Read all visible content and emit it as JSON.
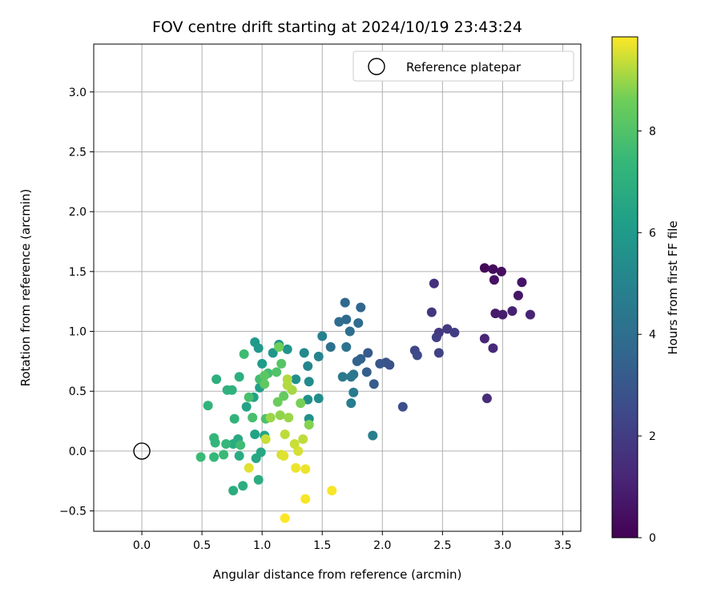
{
  "chart_data": {
    "type": "scatter",
    "title": "FOV centre drift starting at 2024/10/19 23:43:24",
    "xlabel": "Angular distance from reference (arcmin)",
    "ylabel": "Rotation from reference (arcmin)",
    "xlim": [
      -0.4,
      3.65
    ],
    "ylim": [
      -0.67,
      3.4
    ],
    "xticks": [
      "0.0",
      "0.5",
      "1.0",
      "1.5",
      "2.0",
      "2.5",
      "3.0",
      "3.5"
    ],
    "yticks": [
      "−0.5",
      "0.0",
      "0.5",
      "1.0",
      "1.5",
      "2.0",
      "2.5",
      "3.0"
    ],
    "grid": true,
    "legend": {
      "position": "top-right",
      "entries": [
        "Reference platepar"
      ]
    },
    "reference_point": {
      "name": "Reference platepar",
      "x": 0.0,
      "y": 0.0
    },
    "colorbar": {
      "label": "Hours from first FF file",
      "range": [
        0,
        9.85
      ],
      "ticks": [
        "0",
        "2",
        "4",
        "6",
        "8"
      ],
      "colormap": "viridis"
    },
    "points": [
      {
        "x": 2.85,
        "y": 1.53,
        "hours": 0.2
      },
      {
        "x": 2.92,
        "y": 1.52,
        "hours": 0.3
      },
      {
        "x": 2.99,
        "y": 1.5,
        "hours": 0.4
      },
      {
        "x": 2.93,
        "y": 1.43,
        "hours": 0.5
      },
      {
        "x": 3.16,
        "y": 1.41,
        "hours": 0.6
      },
      {
        "x": 3.13,
        "y": 1.3,
        "hours": 0.7
      },
      {
        "x": 2.94,
        "y": 1.15,
        "hours": 0.8
      },
      {
        "x": 3.0,
        "y": 1.14,
        "hours": 0.9
      },
      {
        "x": 3.08,
        "y": 1.17,
        "hours": 1.0
      },
      {
        "x": 3.23,
        "y": 1.14,
        "hours": 1.1
      },
      {
        "x": 2.85,
        "y": 0.94,
        "hours": 1.2
      },
      {
        "x": 2.92,
        "y": 0.86,
        "hours": 1.3
      },
      {
        "x": 2.87,
        "y": 0.44,
        "hours": 1.4
      },
      {
        "x": 2.43,
        "y": 1.4,
        "hours": 1.6
      },
      {
        "x": 2.41,
        "y": 1.16,
        "hours": 1.7
      },
      {
        "x": 2.47,
        "y": 0.99,
        "hours": 1.8
      },
      {
        "x": 2.54,
        "y": 1.02,
        "hours": 1.9
      },
      {
        "x": 2.6,
        "y": 0.99,
        "hours": 2.0
      },
      {
        "x": 2.45,
        "y": 0.95,
        "hours": 2.1
      },
      {
        "x": 2.47,
        "y": 0.82,
        "hours": 2.2
      },
      {
        "x": 2.27,
        "y": 0.84,
        "hours": 2.4
      },
      {
        "x": 2.29,
        "y": 0.8,
        "hours": 2.5
      },
      {
        "x": 2.17,
        "y": 0.37,
        "hours": 2.7
      },
      {
        "x": 2.06,
        "y": 0.72,
        "hours": 2.8
      },
      {
        "x": 2.03,
        "y": 0.74,
        "hours": 2.9
      },
      {
        "x": 1.98,
        "y": 0.73,
        "hours": 3.0
      },
      {
        "x": 1.88,
        "y": 0.82,
        "hours": 3.1
      },
      {
        "x": 1.93,
        "y": 0.56,
        "hours": 3.2
      },
      {
        "x": 1.87,
        "y": 0.66,
        "hours": 3.3
      },
      {
        "x": 1.82,
        "y": 0.77,
        "hours": 3.4
      },
      {
        "x": 1.79,
        "y": 0.75,
        "hours": 3.5
      },
      {
        "x": 1.82,
        "y": 1.2,
        "hours": 3.6
      },
      {
        "x": 1.69,
        "y": 1.24,
        "hours": 3.7
      },
      {
        "x": 1.7,
        "y": 1.1,
        "hours": 3.8
      },
      {
        "x": 1.64,
        "y": 1.08,
        "hours": 3.9
      },
      {
        "x": 1.8,
        "y": 1.07,
        "hours": 3.9
      },
      {
        "x": 1.73,
        "y": 1.0,
        "hours": 4.0
      },
      {
        "x": 1.57,
        "y": 0.87,
        "hours": 4.1
      },
      {
        "x": 1.7,
        "y": 0.87,
        "hours": 4.2
      },
      {
        "x": 1.76,
        "y": 0.64,
        "hours": 4.3
      },
      {
        "x": 1.74,
        "y": 0.62,
        "hours": 4.4
      },
      {
        "x": 1.67,
        "y": 0.62,
        "hours": 4.5
      },
      {
        "x": 1.76,
        "y": 0.49,
        "hours": 4.6
      },
      {
        "x": 1.74,
        "y": 0.4,
        "hours": 4.7
      },
      {
        "x": 1.92,
        "y": 0.13,
        "hours": 4.8
      },
      {
        "x": 1.5,
        "y": 0.96,
        "hours": 4.9
      },
      {
        "x": 1.47,
        "y": 0.79,
        "hours": 5.0
      },
      {
        "x": 1.38,
        "y": 0.71,
        "hours": 5.1
      },
      {
        "x": 1.35,
        "y": 0.82,
        "hours": 5.2
      },
      {
        "x": 1.39,
        "y": 0.58,
        "hours": 5.3
      },
      {
        "x": 1.47,
        "y": 0.44,
        "hours": 5.4
      },
      {
        "x": 1.38,
        "y": 0.43,
        "hours": 5.5
      },
      {
        "x": 1.39,
        "y": 0.27,
        "hours": 5.6
      },
      {
        "x": 1.28,
        "y": 0.6,
        "hours": 5.6
      },
      {
        "x": 1.21,
        "y": 0.85,
        "hours": 5.7
      },
      {
        "x": 1.09,
        "y": 0.82,
        "hours": 5.8
      },
      {
        "x": 1.14,
        "y": 0.89,
        "hours": 5.9
      },
      {
        "x": 0.94,
        "y": 0.91,
        "hours": 6.0
      },
      {
        "x": 0.97,
        "y": 0.86,
        "hours": 6.0
      },
      {
        "x": 1.0,
        "y": 0.73,
        "hours": 6.1
      },
      {
        "x": 0.98,
        "y": 0.53,
        "hours": 6.2
      },
      {
        "x": 0.93,
        "y": 0.45,
        "hours": 6.3
      },
      {
        "x": 0.87,
        "y": 0.37,
        "hours": 6.4
      },
      {
        "x": 0.94,
        "y": 0.14,
        "hours": 6.4
      },
      {
        "x": 1.02,
        "y": 0.13,
        "hours": 6.5
      },
      {
        "x": 0.99,
        "y": -0.01,
        "hours": 6.6
      },
      {
        "x": 0.95,
        "y": -0.06,
        "hours": 6.6
      },
      {
        "x": 0.8,
        "y": 0.1,
        "hours": 6.7
      },
      {
        "x": 0.76,
        "y": 0.06,
        "hours": 6.8
      },
      {
        "x": 0.81,
        "y": -0.04,
        "hours": 6.8
      },
      {
        "x": 0.84,
        "y": -0.29,
        "hours": 6.9
      },
      {
        "x": 0.76,
        "y": -0.33,
        "hours": 6.9
      },
      {
        "x": 0.97,
        "y": -0.24,
        "hours": 6.9
      },
      {
        "x": 0.81,
        "y": 0.62,
        "hours": 7.0
      },
      {
        "x": 0.62,
        "y": 0.6,
        "hours": 7.0
      },
      {
        "x": 0.71,
        "y": 0.51,
        "hours": 7.1
      },
      {
        "x": 0.75,
        "y": 0.51,
        "hours": 7.1
      },
      {
        "x": 0.55,
        "y": 0.38,
        "hours": 7.2
      },
      {
        "x": 0.77,
        "y": 0.27,
        "hours": 7.2
      },
      {
        "x": 0.6,
        "y": 0.11,
        "hours": 7.3
      },
      {
        "x": 0.61,
        "y": 0.07,
        "hours": 7.3
      },
      {
        "x": 0.7,
        "y": 0.06,
        "hours": 7.4
      },
      {
        "x": 0.6,
        "y": -0.05,
        "hours": 7.4
      },
      {
        "x": 0.49,
        "y": -0.05,
        "hours": 7.5
      },
      {
        "x": 0.68,
        "y": -0.03,
        "hours": 7.5
      },
      {
        "x": 0.82,
        "y": 0.05,
        "hours": 7.6
      },
      {
        "x": 0.85,
        "y": 0.81,
        "hours": 7.6
      },
      {
        "x": 1.05,
        "y": 0.65,
        "hours": 7.7
      },
      {
        "x": 0.98,
        "y": 0.6,
        "hours": 7.7
      },
      {
        "x": 0.89,
        "y": 0.45,
        "hours": 7.8
      },
      {
        "x": 0.92,
        "y": 0.28,
        "hours": 7.8
      },
      {
        "x": 1.03,
        "y": 0.27,
        "hours": 7.9
      },
      {
        "x": 1.12,
        "y": 0.66,
        "hours": 8.0
      },
      {
        "x": 1.16,
        "y": 0.73,
        "hours": 8.1
      },
      {
        "x": 1.02,
        "y": 0.63,
        "hours": 8.2
      },
      {
        "x": 1.02,
        "y": 0.56,
        "hours": 8.3
      },
      {
        "x": 1.18,
        "y": 0.46,
        "hours": 8.4
      },
      {
        "x": 1.13,
        "y": 0.41,
        "hours": 8.5
      },
      {
        "x": 1.14,
        "y": 0.87,
        "hours": 8.6
      },
      {
        "x": 1.32,
        "y": 0.4,
        "hours": 8.7
      },
      {
        "x": 1.39,
        "y": 0.22,
        "hours": 8.8
      },
      {
        "x": 1.15,
        "y": 0.3,
        "hours": 8.9
      },
      {
        "x": 1.22,
        "y": 0.28,
        "hours": 9.0
      },
      {
        "x": 1.07,
        "y": 0.28,
        "hours": 9.0
      },
      {
        "x": 1.25,
        "y": 0.51,
        "hours": 9.1
      },
      {
        "x": 1.21,
        "y": 0.6,
        "hours": 9.2
      },
      {
        "x": 1.21,
        "y": 0.55,
        "hours": 9.2
      },
      {
        "x": 1.19,
        "y": 0.14,
        "hours": 9.3
      },
      {
        "x": 1.34,
        "y": 0.1,
        "hours": 9.3
      },
      {
        "x": 1.03,
        "y": 0.1,
        "hours": 9.4
      },
      {
        "x": 1.27,
        "y": 0.06,
        "hours": 9.4
      },
      {
        "x": 1.3,
        "y": 0.0,
        "hours": 9.5
      },
      {
        "x": 1.16,
        "y": -0.03,
        "hours": 9.5
      },
      {
        "x": 1.18,
        "y": -0.04,
        "hours": 9.6
      },
      {
        "x": 0.89,
        "y": -0.14,
        "hours": 9.6
      },
      {
        "x": 1.36,
        "y": -0.15,
        "hours": 9.7
      },
      {
        "x": 1.28,
        "y": -0.14,
        "hours": 9.7
      },
      {
        "x": 1.36,
        "y": -0.4,
        "hours": 9.8
      },
      {
        "x": 1.58,
        "y": -0.33,
        "hours": 9.8
      },
      {
        "x": 1.19,
        "y": -0.56,
        "hours": 9.85
      }
    ]
  }
}
